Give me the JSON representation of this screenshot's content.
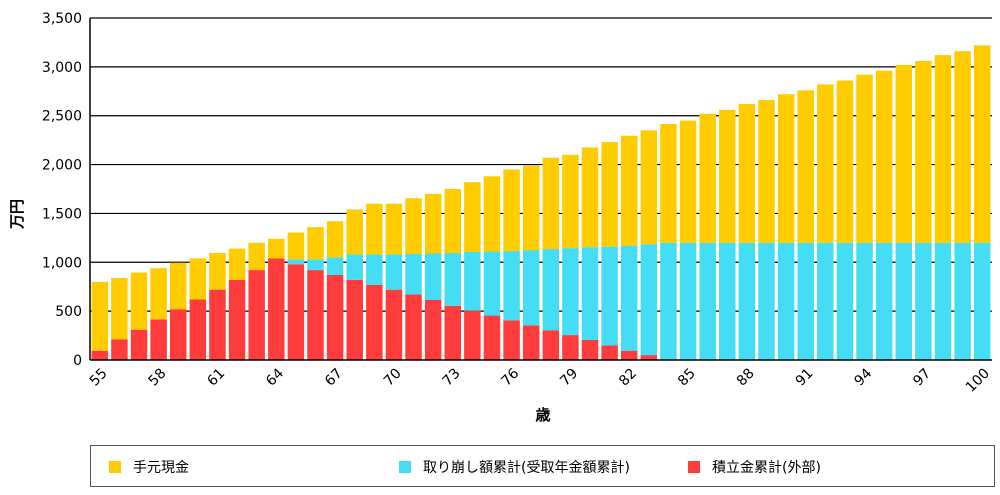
{
  "chart_data": {
    "type": "bar",
    "stacked": true,
    "xlabel": "歳",
    "ylabel": "万円",
    "ylim": [
      0,
      3500
    ],
    "yticks": [
      "0",
      "500",
      "1,000",
      "1,500",
      "2,000",
      "2,500",
      "3,000",
      "3,500"
    ],
    "grid": true,
    "legend_position": "bottom",
    "categories": [
      55,
      56,
      57,
      58,
      59,
      60,
      61,
      62,
      63,
      64,
      65,
      66,
      67,
      68,
      69,
      70,
      71,
      72,
      73,
      74,
      75,
      76,
      77,
      78,
      79,
      80,
      81,
      82,
      83,
      84,
      85,
      86,
      87,
      88,
      89,
      90,
      91,
      92,
      93,
      94,
      95,
      96,
      97,
      98,
      99,
      100
    ],
    "xtick_labels": [
      "55",
      "58",
      "61",
      "64",
      "67",
      "70",
      "73",
      "76",
      "79",
      "82",
      "85",
      "88",
      "91",
      "94",
      "97",
      "100"
    ],
    "series": [
      {
        "name": "積立金累計(外部)",
        "color": "#ff3c3c",
        "values": [
          95,
          210,
          310,
          415,
          520,
          620,
          720,
          820,
          920,
          1040,
          980,
          920,
          870,
          820,
          770,
          720,
          670,
          615,
          555,
          505,
          455,
          405,
          355,
          305,
          255,
          205,
          150,
          95,
          50,
          0,
          0,
          0,
          0,
          0,
          0,
          0,
          0,
          0,
          0,
          0,
          0,
          0,
          0,
          0,
          0,
          0
        ]
      },
      {
        "name": "取り崩し額累計(受取年金額累計)",
        "color": "#44ddf5",
        "values": [
          0,
          0,
          0,
          0,
          0,
          0,
          0,
          0,
          0,
          0,
          50,
          110,
          180,
          260,
          310,
          360,
          415,
          475,
          540,
          600,
          655,
          710,
          770,
          830,
          890,
          950,
          1010,
          1075,
          1135,
          1200,
          1200,
          1200,
          1200,
          1200,
          1200,
          1200,
          1200,
          1200,
          1200,
          1200,
          1200,
          1200,
          1200,
          1200,
          1200,
          1200
        ]
      },
      {
        "name": "手元現金",
        "color": "#ffcc00",
        "values": [
          705,
          630,
          585,
          525,
          475,
          420,
          375,
          320,
          280,
          200,
          275,
          330,
          370,
          460,
          520,
          520,
          570,
          610,
          655,
          715,
          770,
          835,
          865,
          935,
          955,
          1020,
          1070,
          1125,
          1165,
          1215,
          1250,
          1320,
          1360,
          1420,
          1460,
          1520,
          1560,
          1620,
          1660,
          1720,
          1760,
          1820,
          1860,
          1920,
          1960,
          2020
        ]
      }
    ]
  }
}
